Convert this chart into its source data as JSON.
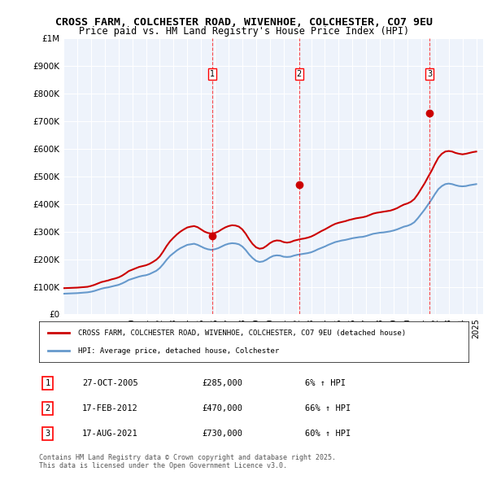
{
  "title_line1": "CROSS FARM, COLCHESTER ROAD, WIVENHOE, COLCHESTER, CO7 9EU",
  "title_line2": "Price paid vs. HM Land Registry's House Price Index (HPI)",
  "bg_color": "#eef3fb",
  "plot_bg_color": "#eef3fb",
  "ylabel_ticks": [
    "£0",
    "£100K",
    "£200K",
    "£300K",
    "£400K",
    "£500K",
    "£600K",
    "£700K",
    "£800K",
    "£900K",
    "£1M"
  ],
  "ytick_values": [
    0,
    100000,
    200000,
    300000,
    400000,
    500000,
    600000,
    700000,
    800000,
    900000,
    1000000
  ],
  "xlim_start": 1995.0,
  "xlim_end": 2025.5,
  "ylim_min": 0,
  "ylim_max": 1000000,
  "sale_dates": [
    2005.82,
    2012.12,
    2021.62
  ],
  "sale_prices": [
    285000,
    470000,
    730000
  ],
  "sale_labels": [
    "1",
    "2",
    "3"
  ],
  "sale_info": [
    {
      "num": "1",
      "date": "27-OCT-2005",
      "price": "£285,000",
      "hpi": "6% ↑ HPI"
    },
    {
      "num": "2",
      "date": "17-FEB-2012",
      "price": "£470,000",
      "hpi": "66% ↑ HPI"
    },
    {
      "num": "3",
      "date": "17-AUG-2021",
      "price": "£730,000",
      "hpi": "60% ↑ HPI"
    }
  ],
  "legend_line1": "CROSS FARM, COLCHESTER ROAD, WIVENHOE, COLCHESTER, CO7 9EU (detached house)",
  "legend_line2": "HPI: Average price, detached house, Colchester",
  "footer": "Contains HM Land Registry data © Crown copyright and database right 2025.\nThis data is licensed under the Open Government Licence v3.0.",
  "red_color": "#cc0000",
  "blue_color": "#6699cc",
  "hpi_red_years": [
    1995.0,
    1995.25,
    1995.5,
    1995.75,
    1996.0,
    1996.25,
    1996.5,
    1996.75,
    1997.0,
    1997.25,
    1997.5,
    1997.75,
    1998.0,
    1998.25,
    1998.5,
    1998.75,
    1999.0,
    1999.25,
    1999.5,
    1999.75,
    2000.0,
    2000.25,
    2000.5,
    2000.75,
    2001.0,
    2001.25,
    2001.5,
    2001.75,
    2002.0,
    2002.25,
    2002.5,
    2002.75,
    2003.0,
    2003.25,
    2003.5,
    2003.75,
    2004.0,
    2004.25,
    2004.5,
    2004.75,
    2005.0,
    2005.25,
    2005.5,
    2005.75,
    2006.0,
    2006.25,
    2006.5,
    2006.75,
    2007.0,
    2007.25,
    2007.5,
    2007.75,
    2008.0,
    2008.25,
    2008.5,
    2008.75,
    2009.0,
    2009.25,
    2009.5,
    2009.75,
    2010.0,
    2010.25,
    2010.5,
    2010.75,
    2011.0,
    2011.25,
    2011.5,
    2011.75,
    2012.0,
    2012.25,
    2012.5,
    2012.75,
    2013.0,
    2013.25,
    2013.5,
    2013.75,
    2014.0,
    2014.25,
    2014.5,
    2014.75,
    2015.0,
    2015.25,
    2015.5,
    2015.75,
    2016.0,
    2016.25,
    2016.5,
    2016.75,
    2017.0,
    2017.25,
    2017.5,
    2017.75,
    2018.0,
    2018.25,
    2018.5,
    2018.75,
    2019.0,
    2019.25,
    2019.5,
    2019.75,
    2020.0,
    2020.25,
    2020.5,
    2020.75,
    2021.0,
    2021.25,
    2021.5,
    2021.75,
    2022.0,
    2022.25,
    2022.5,
    2022.75,
    2023.0,
    2023.25,
    2023.5,
    2023.75,
    2024.0,
    2024.25,
    2024.5,
    2024.75,
    2025.0
  ],
  "hpi_red_values": [
    95000,
    95500,
    96000,
    96500,
    97000,
    98000,
    99000,
    100000,
    103000,
    107000,
    112000,
    117000,
    120000,
    123000,
    127000,
    130000,
    134000,
    140000,
    148000,
    157000,
    162000,
    167000,
    172000,
    175000,
    178000,
    183000,
    190000,
    198000,
    210000,
    228000,
    248000,
    265000,
    278000,
    290000,
    300000,
    308000,
    315000,
    318000,
    320000,
    316000,
    308000,
    300000,
    295000,
    293000,
    295000,
    300000,
    308000,
    315000,
    320000,
    323000,
    322000,
    318000,
    308000,
    292000,
    272000,
    255000,
    243000,
    238000,
    240000,
    248000,
    258000,
    265000,
    268000,
    267000,
    262000,
    260000,
    262000,
    267000,
    270000,
    273000,
    275000,
    278000,
    282000,
    288000,
    295000,
    302000,
    308000,
    315000,
    322000,
    328000,
    332000,
    335000,
    338000,
    342000,
    345000,
    348000,
    350000,
    352000,
    355000,
    360000,
    365000,
    368000,
    370000,
    372000,
    374000,
    376000,
    380000,
    385000,
    392000,
    398000,
    402000,
    408000,
    418000,
    435000,
    455000,
    475000,
    498000,
    520000,
    545000,
    568000,
    582000,
    590000,
    592000,
    590000,
    585000,
    582000,
    580000,
    582000,
    585000,
    588000,
    590000
  ],
  "hpi_blue_years": [
    1995.0,
    1995.25,
    1995.5,
    1995.75,
    1996.0,
    1996.25,
    1996.5,
    1996.75,
    1997.0,
    1997.25,
    1997.5,
    1997.75,
    1998.0,
    1998.25,
    1998.5,
    1998.75,
    1999.0,
    1999.25,
    1999.5,
    1999.75,
    2000.0,
    2000.25,
    2000.5,
    2000.75,
    2001.0,
    2001.25,
    2001.5,
    2001.75,
    2002.0,
    2002.25,
    2002.5,
    2002.75,
    2003.0,
    2003.25,
    2003.5,
    2003.75,
    2004.0,
    2004.25,
    2004.5,
    2004.75,
    2005.0,
    2005.25,
    2005.5,
    2005.75,
    2006.0,
    2006.25,
    2006.5,
    2006.75,
    2007.0,
    2007.25,
    2007.5,
    2007.75,
    2008.0,
    2008.25,
    2008.5,
    2008.75,
    2009.0,
    2009.25,
    2009.5,
    2009.75,
    2010.0,
    2010.25,
    2010.5,
    2010.75,
    2011.0,
    2011.25,
    2011.5,
    2011.75,
    2012.0,
    2012.25,
    2012.5,
    2012.75,
    2013.0,
    2013.25,
    2013.5,
    2013.75,
    2014.0,
    2014.25,
    2014.5,
    2014.75,
    2015.0,
    2015.25,
    2015.5,
    2015.75,
    2016.0,
    2016.25,
    2016.5,
    2016.75,
    2017.0,
    2017.25,
    2017.5,
    2017.75,
    2018.0,
    2018.25,
    2018.5,
    2018.75,
    2019.0,
    2019.25,
    2019.5,
    2019.75,
    2020.0,
    2020.25,
    2020.5,
    2020.75,
    2021.0,
    2021.25,
    2021.5,
    2021.75,
    2022.0,
    2022.25,
    2022.5,
    2022.75,
    2023.0,
    2023.25,
    2023.5,
    2023.75,
    2024.0,
    2024.25,
    2024.5,
    2024.75,
    2025.0
  ],
  "hpi_blue_values": [
    75000,
    75500,
    76000,
    76500,
    77000,
    78000,
    79000,
    80000,
    82000,
    85000,
    89000,
    93000,
    96000,
    98000,
    101000,
    104000,
    107000,
    112000,
    118000,
    125000,
    129000,
    133000,
    137000,
    140000,
    142000,
    146000,
    152000,
    158000,
    168000,
    182000,
    198000,
    212000,
    222000,
    232000,
    240000,
    246000,
    252000,
    254000,
    256000,
    252000,
    246000,
    240000,
    236000,
    234000,
    236000,
    240000,
    246000,
    252000,
    256000,
    258000,
    257000,
    254000,
    246000,
    233000,
    217000,
    204000,
    194000,
    190000,
    192000,
    198000,
    206000,
    212000,
    214000,
    213000,
    209000,
    208000,
    209000,
    213000,
    216000,
    218000,
    220000,
    222000,
    225000,
    230000,
    236000,
    241000,
    246000,
    252000,
    257000,
    262000,
    265000,
    268000,
    270000,
    273000,
    276000,
    278000,
    280000,
    281000,
    284000,
    288000,
    292000,
    294000,
    296000,
    297000,
    299000,
    301000,
    304000,
    308000,
    313000,
    318000,
    321000,
    326000,
    334000,
    348000,
    364000,
    380000,
    398000,
    416000,
    436000,
    454000,
    465000,
    472000,
    474000,
    472000,
    468000,
    465000,
    464000,
    465000,
    468000,
    470000,
    472000
  ]
}
